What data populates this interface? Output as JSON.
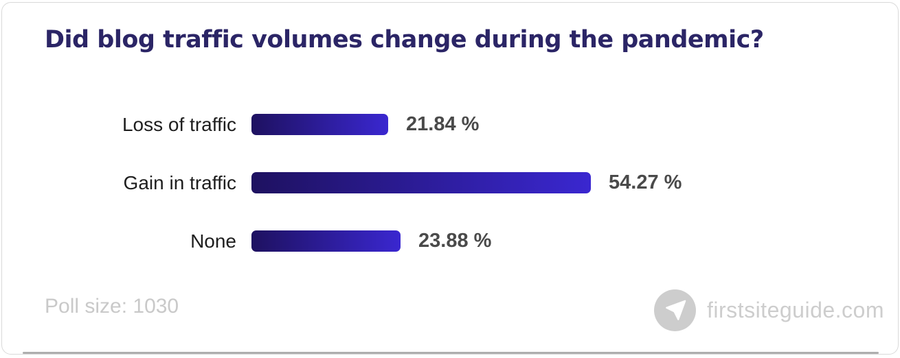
{
  "title": "Did blog traffic volumes change during the pandemic?",
  "chart_data": {
    "type": "bar",
    "orientation": "horizontal",
    "title": "Did blog traffic volumes change during the pandemic?",
    "categories": [
      "Loss of traffic",
      "Gain in traffic",
      "None"
    ],
    "values": [
      21.84,
      54.27,
      23.88
    ],
    "value_labels": [
      "21.84 %",
      "54.27 %",
      "23.88 %"
    ],
    "unit": "%",
    "axes_visible": false,
    "grid": false,
    "legend": "none"
  },
  "footer": {
    "poll_size_label": "Poll size: 1030",
    "watermark_text": "firstsiteguide.com"
  },
  "icons": {
    "watermark": "paper-plane-icon"
  },
  "colors": {
    "title": "#2b2566",
    "bar_gradient_start": "#1e1160",
    "bar_gradient_end": "#3a27d0",
    "category_label": "#1e1e1e",
    "value_label": "#4a4a4a",
    "muted_gray": "#cdcdcd",
    "card_border": "#d9d9d9"
  }
}
